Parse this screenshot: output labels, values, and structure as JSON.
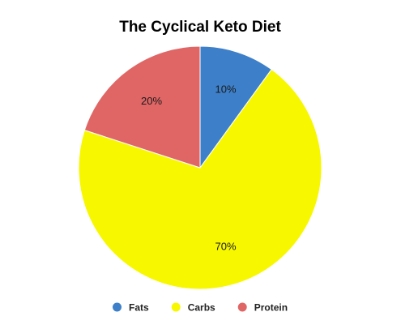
{
  "chart_data": {
    "type": "pie",
    "title": "The Cyclical Keto Diet",
    "categories": [
      "Fats",
      "Carbs",
      "Protein"
    ],
    "values": [
      10,
      70,
      20
    ],
    "value_labels": [
      "10%",
      "70%",
      "20%"
    ],
    "colors": [
      "#3d7fc8",
      "#f7f700",
      "#e06666"
    ],
    "start_angle_deg": 0,
    "direction": "clockwise",
    "legend": "bottom-center"
  }
}
